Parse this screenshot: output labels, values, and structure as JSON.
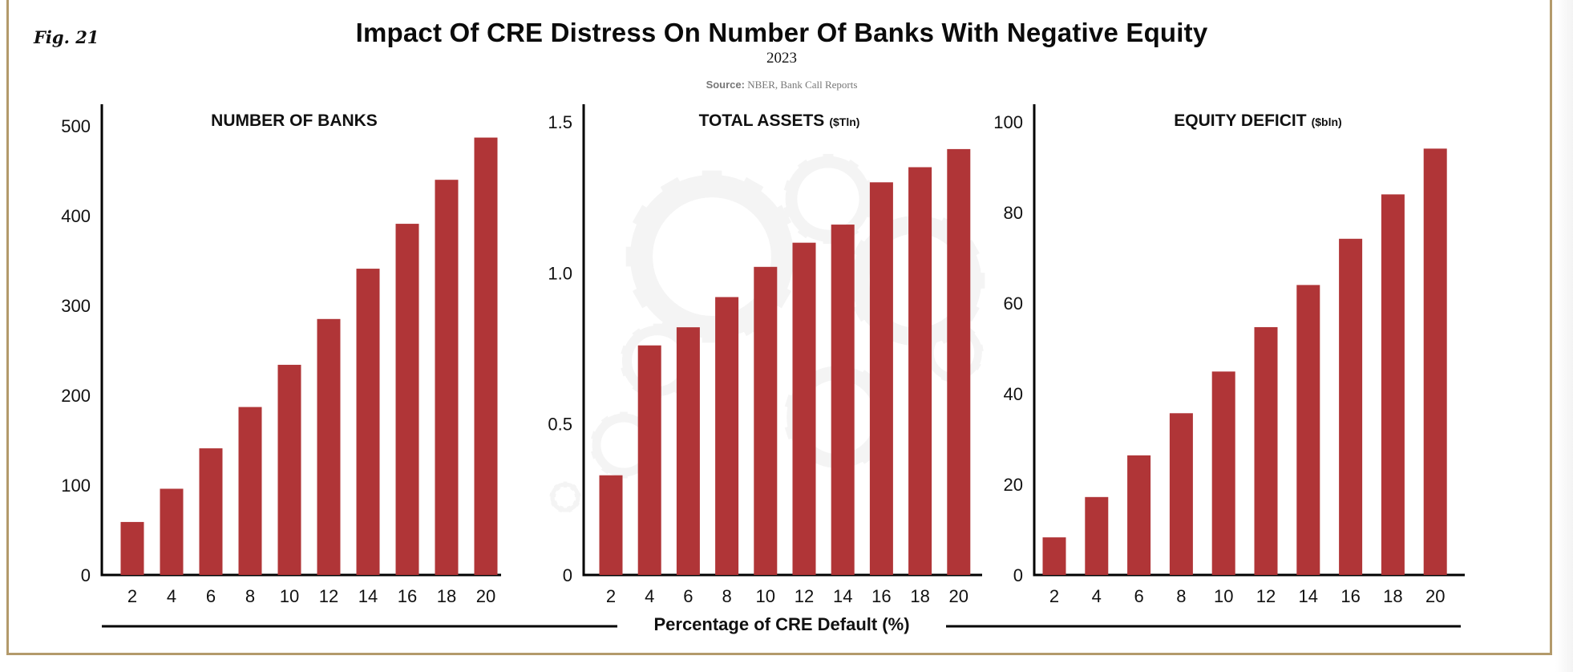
{
  "figure": {
    "label": "Fig. 21",
    "title": "Impact Of CRE Distress On Number Of Banks With Negative Equity",
    "subtitle": "2023",
    "source_prefix": "Source:",
    "source_text": " NBER, Bank Call Reports",
    "bar_color": "#b03537",
    "frame_color": "#b39a6b"
  },
  "chart_data": [
    {
      "type": "bar",
      "title": "NUMBER OF BANKS",
      "unit": "",
      "xlabel": "Percentage of CRE Default (%)",
      "ylabel": "",
      "categories": [
        "2",
        "4",
        "6",
        "8",
        "10",
        "12",
        "14",
        "16",
        "18",
        "20"
      ],
      "values": [
        59,
        96,
        141,
        187,
        234,
        285,
        341,
        391,
        440,
        487
      ],
      "ylim": [
        0,
        500
      ],
      "yticks": [
        0,
        100,
        200,
        300,
        400,
        500
      ],
      "ytick_labels": [
        "0",
        "100",
        "200",
        "300",
        "400",
        "500"
      ],
      "grid": false
    },
    {
      "type": "bar",
      "title": "TOTAL ASSETS",
      "unit": "($Tln)",
      "xlabel": "Percentage of CRE Default (%)",
      "ylabel": "",
      "categories": [
        "2",
        "4",
        "6",
        "8",
        "10",
        "12",
        "14",
        "16",
        "18",
        "20"
      ],
      "values": [
        0.33,
        0.76,
        0.82,
        0.92,
        1.02,
        1.1,
        1.16,
        1.3,
        1.35,
        1.41
      ],
      "ylim": [
        0,
        1.5
      ],
      "yticks": [
        0,
        0.5,
        1.0,
        1.5
      ],
      "ytick_labels": [
        "0",
        "0.5",
        "1.0",
        "1.5"
      ],
      "grid": false
    },
    {
      "type": "bar",
      "title": "EQUITY DEFICIT",
      "unit": "($bln)",
      "xlabel": "Percentage of CRE Default (%)",
      "ylabel": "",
      "categories": [
        "2",
        "4",
        "6",
        "8",
        "10",
        "12",
        "14",
        "16",
        "18",
        "20"
      ],
      "values": [
        8.3,
        17.2,
        26.4,
        35.7,
        44.9,
        54.7,
        64.0,
        74.2,
        84.0,
        94.1
      ],
      "ylim": [
        0,
        100
      ],
      "yticks": [
        0,
        20,
        40,
        60,
        80,
        100
      ],
      "ytick_labels": [
        "0",
        "20",
        "40",
        "60",
        "80",
        "100"
      ],
      "grid": false
    }
  ],
  "shared_xlabel": "Percentage of CRE Default (%)"
}
